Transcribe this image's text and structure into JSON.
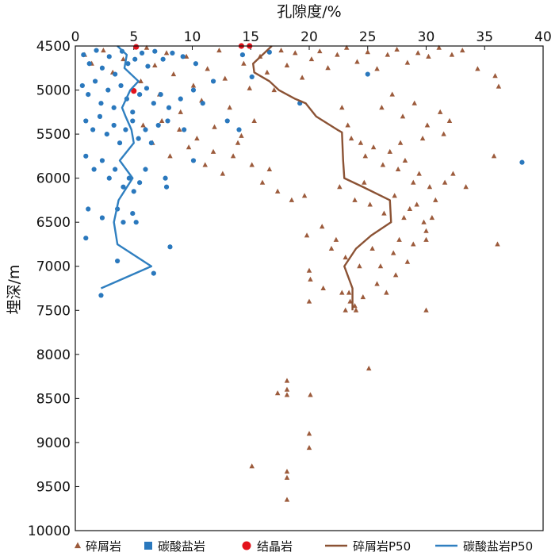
{
  "chart_data": {
    "type": "scatter",
    "xlabel": "孔隙度/%",
    "ylabel": "埋深/m",
    "xlim": [
      0,
      40
    ],
    "ylim": [
      4500,
      10000
    ],
    "y_inverted": true,
    "x_axis_position": "top",
    "x_ticks": [
      "0",
      "5",
      "10",
      "15",
      "20",
      "25",
      "30",
      "35",
      "40"
    ],
    "y_ticks": [
      "4500",
      "5000",
      "5500",
      "6000",
      "6500",
      "7000",
      "7500",
      "8000",
      "8500",
      "9000",
      "9500",
      "10000"
    ],
    "legend_position": "bottom",
    "colors": {
      "clastic": "#9c5b3c",
      "carbonate": "#2a78bd",
      "crystalline": "#e3121b",
      "clastic_p50": "#8b5234",
      "carbonate_p50": "#2f7fc0"
    },
    "series": [
      {
        "name": "碎屑岩",
        "key": "clastic",
        "marker": "triangle",
        "points": [
          [
            0.8,
            4600
          ],
          [
            1.4,
            4700
          ],
          [
            2.4,
            4550
          ],
          [
            3.2,
            4800
          ],
          [
            4.1,
            4650
          ],
          [
            5.6,
            4900
          ],
          [
            6.1,
            4520
          ],
          [
            6.8,
            4720
          ],
          [
            7.2,
            5050
          ],
          [
            7.8,
            4580
          ],
          [
            8.4,
            4820
          ],
          [
            9.0,
            5250
          ],
          [
            9.5,
            4620
          ],
          [
            10.1,
            4950
          ],
          [
            10.8,
            5120
          ],
          [
            11.3,
            4760
          ],
          [
            11.9,
            5420
          ],
          [
            12.3,
            4550
          ],
          [
            12.8,
            4870
          ],
          [
            13.2,
            5200
          ],
          [
            13.9,
            5600
          ],
          [
            14.4,
            4700
          ],
          [
            14.9,
            4980
          ],
          [
            15.3,
            5350
          ],
          [
            15.8,
            4620
          ],
          [
            16.4,
            4800
          ],
          [
            17.0,
            5000
          ],
          [
            17.6,
            4550
          ],
          [
            18.1,
            4720
          ],
          [
            18.8,
            4580
          ],
          [
            19.4,
            4860
          ],
          [
            20.2,
            4650
          ],
          [
            20.9,
            4560
          ],
          [
            21.6,
            4750
          ],
          [
            22.4,
            4600
          ],
          [
            23.2,
            4520
          ],
          [
            24.1,
            4680
          ],
          [
            25.0,
            4570
          ],
          [
            25.8,
            4760
          ],
          [
            26.7,
            4600
          ],
          [
            27.5,
            4540
          ],
          [
            28.4,
            4690
          ],
          [
            29.3,
            4580
          ],
          [
            30.2,
            4620
          ],
          [
            31.1,
            4520
          ],
          [
            32.2,
            4600
          ],
          [
            33.1,
            4550
          ],
          [
            34.4,
            4760
          ],
          [
            35.9,
            4840
          ],
          [
            36.2,
            4960
          ],
          [
            5.8,
            5400
          ],
          [
            6.6,
            5600
          ],
          [
            7.4,
            5350
          ],
          [
            8.1,
            5750
          ],
          [
            8.9,
            5450
          ],
          [
            9.7,
            5650
          ],
          [
            10.4,
            5550
          ],
          [
            11.1,
            5850
          ],
          [
            11.8,
            5700
          ],
          [
            12.6,
            5950
          ],
          [
            13.5,
            5750
          ],
          [
            14.2,
            5520
          ],
          [
            15.1,
            5850
          ],
          [
            16.0,
            6050
          ],
          [
            16.6,
            5900
          ],
          [
            17.3,
            6150
          ],
          [
            18.5,
            6250
          ],
          [
            19.6,
            6200
          ],
          [
            22.8,
            5200
          ],
          [
            23.3,
            5400
          ],
          [
            23.6,
            5550
          ],
          [
            24.4,
            5600
          ],
          [
            24.8,
            5750
          ],
          [
            25.5,
            5650
          ],
          [
            26.3,
            5850
          ],
          [
            26.9,
            5700
          ],
          [
            27.6,
            5900
          ],
          [
            28.2,
            5800
          ],
          [
            28.9,
            6050
          ],
          [
            29.4,
            5950
          ],
          [
            30.3,
            6100
          ],
          [
            30.8,
            6250
          ],
          [
            31.6,
            6050
          ],
          [
            32.3,
            5950
          ],
          [
            33.4,
            6100
          ],
          [
            35.8,
            5750
          ],
          [
            26.2,
            5200
          ],
          [
            27.1,
            5050
          ],
          [
            28.0,
            5300
          ],
          [
            29.0,
            5150
          ],
          [
            30.1,
            5400
          ],
          [
            31.2,
            5250
          ],
          [
            32.0,
            5350
          ],
          [
            27.8,
            5600
          ],
          [
            29.7,
            5550
          ],
          [
            31.5,
            5500
          ],
          [
            22.6,
            6100
          ],
          [
            23.9,
            6250
          ],
          [
            24.7,
            6050
          ],
          [
            25.2,
            6300
          ],
          [
            26.4,
            6400
          ],
          [
            27.3,
            6200
          ],
          [
            28.1,
            6450
          ],
          [
            28.6,
            6350
          ],
          [
            29.2,
            6300
          ],
          [
            29.8,
            6500
          ],
          [
            30.0,
            6600
          ],
          [
            30.5,
            6450
          ],
          [
            27.7,
            6700
          ],
          [
            28.9,
            6750
          ],
          [
            30.0,
            6700
          ],
          [
            36.1,
            6750
          ],
          [
            19.8,
            6650
          ],
          [
            21.1,
            6550
          ],
          [
            21.9,
            6800
          ],
          [
            22.3,
            6700
          ],
          [
            23.1,
            6900
          ],
          [
            24.3,
            7000
          ],
          [
            25.4,
            6800
          ],
          [
            26.1,
            7000
          ],
          [
            27.2,
            6850
          ],
          [
            28.4,
            6950
          ],
          [
            20.0,
            7050
          ],
          [
            20.1,
            7150
          ],
          [
            21.2,
            7250
          ],
          [
            22.8,
            7300
          ],
          [
            23.4,
            7300
          ],
          [
            23.5,
            7400
          ],
          [
            23.9,
            7450
          ],
          [
            24.6,
            7350
          ],
          [
            25.8,
            7200
          ],
          [
            26.6,
            7300
          ],
          [
            27.4,
            7100
          ],
          [
            20.0,
            7400
          ],
          [
            23.1,
            7500
          ],
          [
            24.0,
            7500
          ],
          [
            30.0,
            7500
          ],
          [
            25.1,
            8160
          ],
          [
            18.1,
            8300
          ],
          [
            17.3,
            8440
          ],
          [
            18.1,
            8400
          ],
          [
            18.1,
            8460
          ],
          [
            20.1,
            8460
          ],
          [
            20.0,
            8900
          ],
          [
            20.0,
            9060
          ],
          [
            15.1,
            9270
          ],
          [
            18.1,
            9330
          ],
          [
            18.1,
            9400
          ],
          [
            18.1,
            9650
          ]
        ]
      },
      {
        "name": "碳酸盐岩",
        "key": "carbonate",
        "marker": "circle",
        "points": [
          [
            0.7,
            4600
          ],
          [
            1.2,
            4700
          ],
          [
            1.8,
            4550
          ],
          [
            2.3,
            4750
          ],
          [
            2.9,
            4620
          ],
          [
            3.4,
            4820
          ],
          [
            4.0,
            4560
          ],
          [
            4.5,
            4700
          ],
          [
            5.1,
            4650
          ],
          [
            5.7,
            4580
          ],
          [
            6.2,
            4730
          ],
          [
            6.8,
            4560
          ],
          [
            7.5,
            4650
          ],
          [
            8.3,
            4580
          ],
          [
            9.2,
            4620
          ],
          [
            10.3,
            4700
          ],
          [
            0.6,
            4950
          ],
          [
            1.1,
            5050
          ],
          [
            1.7,
            4900
          ],
          [
            2.2,
            5150
          ],
          [
            2.8,
            5000
          ],
          [
            3.3,
            5200
          ],
          [
            3.9,
            4950
          ],
          [
            4.4,
            5100
          ],
          [
            4.9,
            5250
          ],
          [
            5.5,
            5050
          ],
          [
            6.1,
            4980
          ],
          [
            6.7,
            5150
          ],
          [
            7.3,
            5050
          ],
          [
            8.0,
            5200
          ],
          [
            9.0,
            5100
          ],
          [
            10.1,
            5000
          ],
          [
            10.9,
            5150
          ],
          [
            11.8,
            4900
          ],
          [
            0.9,
            5350
          ],
          [
            1.5,
            5450
          ],
          [
            2.1,
            5300
          ],
          [
            2.7,
            5500
          ],
          [
            3.3,
            5400
          ],
          [
            3.8,
            5600
          ],
          [
            4.3,
            5450
          ],
          [
            4.9,
            5350
          ],
          [
            5.4,
            5550
          ],
          [
            6.0,
            5450
          ],
          [
            6.5,
            5600
          ],
          [
            7.1,
            5400
          ],
          [
            7.9,
            5350
          ],
          [
            9.3,
            5450
          ],
          [
            10.1,
            5800
          ],
          [
            0.9,
            5750
          ],
          [
            1.6,
            5900
          ],
          [
            2.3,
            5800
          ],
          [
            2.9,
            6000
          ],
          [
            3.4,
            5900
          ],
          [
            4.1,
            6100
          ],
          [
            4.6,
            6000
          ],
          [
            5.0,
            6150
          ],
          [
            5.5,
            6050
          ],
          [
            6.0,
            5900
          ],
          [
            7.7,
            6000
          ],
          [
            7.8,
            6100
          ],
          [
            1.1,
            6350
          ],
          [
            2.3,
            6450
          ],
          [
            3.6,
            6350
          ],
          [
            4.1,
            6500
          ],
          [
            4.9,
            6400
          ],
          [
            5.2,
            6500
          ],
          [
            0.9,
            6680
          ],
          [
            8.1,
            6780
          ],
          [
            3.6,
            6940
          ],
          [
            6.7,
            7080
          ],
          [
            2.2,
            7330
          ],
          [
            25.0,
            4820
          ],
          [
            38.2,
            5820
          ],
          [
            14.3,
            4600
          ],
          [
            15.1,
            4850
          ],
          [
            16.6,
            4570
          ],
          [
            19.2,
            5150
          ],
          [
            13.0,
            5350
          ],
          [
            14.0,
            5450
          ]
        ]
      },
      {
        "name": "结晶岩",
        "key": "crystalline",
        "marker": "circle",
        "points": [
          [
            5.2,
            4510
          ],
          [
            5.0,
            5010
          ],
          [
            14.2,
            4500
          ],
          [
            14.9,
            4500
          ]
        ]
      }
    ],
    "lines": [
      {
        "name": "碎屑岩P50",
        "key": "clastic_p50",
        "points": [
          [
            16.8,
            4500
          ],
          [
            15.2,
            4700
          ],
          [
            15.3,
            4800
          ],
          [
            16.6,
            4900
          ],
          [
            17.4,
            5000
          ],
          [
            18.8,
            5100
          ],
          [
            19.7,
            5150
          ],
          [
            20.6,
            5300
          ],
          [
            22.4,
            5450
          ],
          [
            22.8,
            5480
          ],
          [
            22.9,
            5800
          ],
          [
            23.0,
            6000
          ],
          [
            24.6,
            6100
          ],
          [
            26.9,
            6250
          ],
          [
            27.0,
            6500
          ],
          [
            25.3,
            6650
          ],
          [
            24.0,
            6800
          ],
          [
            23.0,
            7000
          ],
          [
            23.7,
            7250
          ],
          [
            23.7,
            7500
          ]
        ]
      },
      {
        "name": "碳酸盐岩P50",
        "key": "carbonate_p50",
        "points": [
          [
            3.6,
            4500
          ],
          [
            4.4,
            4600
          ],
          [
            4.2,
            4750
          ],
          [
            5.4,
            4900
          ],
          [
            4.7,
            5000
          ],
          [
            4.0,
            5200
          ],
          [
            4.3,
            5300
          ],
          [
            4.8,
            5450
          ],
          [
            5.0,
            5600
          ],
          [
            3.8,
            5800
          ],
          [
            4.9,
            6000
          ],
          [
            3.7,
            6250
          ],
          [
            3.3,
            6500
          ],
          [
            3.6,
            6750
          ],
          [
            6.5,
            7000
          ],
          [
            2.2,
            7250
          ]
        ]
      }
    ]
  }
}
